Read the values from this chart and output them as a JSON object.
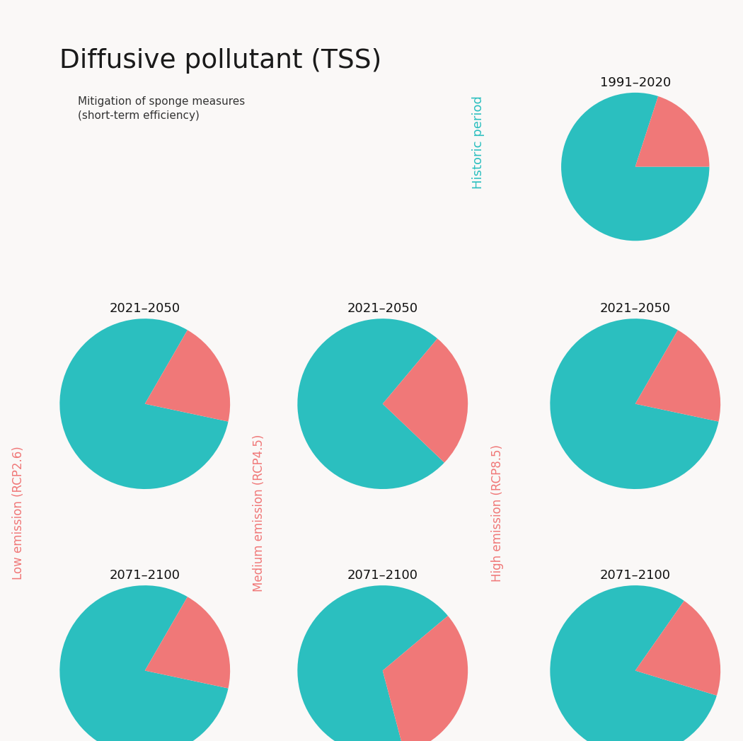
{
  "title": "Diffusive pollutant (TSS)",
  "legend_label": "Mitigation of sponge measures\n(short-term efficiency)",
  "teal_color": "#2bbfbf",
  "salmon_color": "#f07878",
  "bg_color": "#faf8f7",
  "historic_bg": "#d8f2f8",
  "low_bg": "#fde8e0",
  "medium_bg": "#fde8e0",
  "high_bg": "#fde8e0",
  "pies": {
    "historic_1991_2020": {
      "teal": 80,
      "salmon": 20,
      "label": "1991–2020",
      "startangle": 72
    },
    "low_2021_2050": {
      "teal": 80,
      "salmon": 20,
      "label": "2021–2050",
      "startangle": 60
    },
    "low_2071_2100": {
      "teal": 80,
      "salmon": 20,
      "label": "2071–2100",
      "startangle": 60
    },
    "med_2021_2050": {
      "teal": 74,
      "salmon": 26,
      "label": "2021–2050",
      "startangle": 50
    },
    "med_2071_2100": {
      "teal": 68,
      "salmon": 32,
      "label": "2071–2100",
      "startangle": 40
    },
    "high_2021_2050": {
      "teal": 80,
      "salmon": 20,
      "label": "2021–2050",
      "startangle": 60
    },
    "high_2071_2100": {
      "teal": 80,
      "salmon": 20,
      "label": "2071–2100",
      "startangle": 55
    }
  },
  "column_labels": {
    "historic": "Historic period",
    "low": "Low emission (RCP2.6)",
    "medium": "Medium emission (RCP4.5)",
    "high": "High emission (RCP8.5)"
  }
}
